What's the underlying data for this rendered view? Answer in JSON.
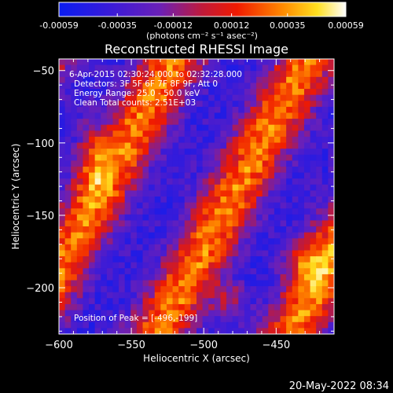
{
  "colorbar": {
    "tick_labels": [
      "-0.00059",
      "-0.00035",
      "-0.00012",
      "0.00012",
      "0.00035",
      "0.00059"
    ],
    "tick_values": [
      -0.00059,
      -0.00035,
      -0.00012,
      0.00012,
      0.00035,
      0.00059
    ],
    "unit_label": "(photons cm⁻² s⁻¹ asec⁻²)",
    "range": [
      -0.00059,
      0.00059
    ]
  },
  "chart_data": {
    "type": "heatmap",
    "title": "Reconstructed RHESSI Image",
    "xlabel": "Heliocentric X (arcsec)",
    "ylabel": "Heliocentric Y (arcsec)",
    "xlim": [
      -600,
      -410
    ],
    "ylim": [
      -232,
      -42
    ],
    "x_ticks": [
      -600,
      -550,
      -500,
      -450
    ],
    "x_tick_labels": [
      "−600",
      "−550",
      "−500",
      "−450"
    ],
    "y_ticks": [
      -50,
      -100,
      -150,
      -200
    ],
    "y_tick_labels": [
      "−50",
      "−100",
      "−150",
      "−200"
    ],
    "colormap": "rainbow-heat (blue-purple-red-orange-yellow-white)",
    "annotations": [
      "6-Apr-2015 02:30:24.000 to 02:32:28.000",
      "Detectors: 3F 5F 6F 7F 8F 9F, Att 0",
      "Energy Range: 25.0 - 50.0 keV",
      "Clean    Total counts: 2.51E+03"
    ],
    "peak_label": "Position of Peak = [-496,-199]",
    "peak": [
      -496,
      -199
    ],
    "grid": false
  },
  "footer": {
    "timestamp": "20-May-2022 08:34"
  }
}
